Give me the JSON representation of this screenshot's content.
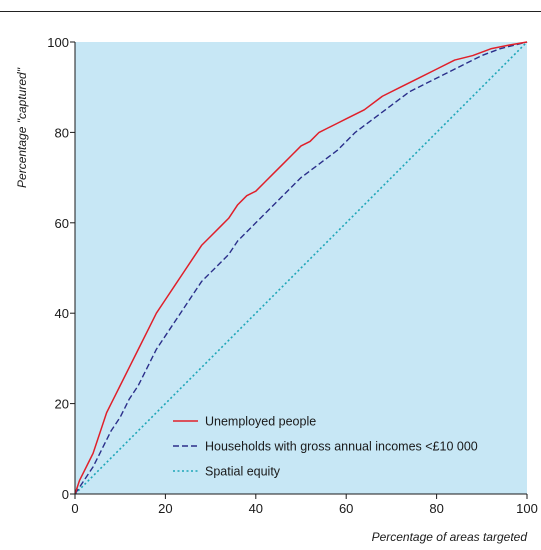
{
  "chart_data": {
    "type": "line",
    "xlabel": "Percentage of areas targeted",
    "ylabel": "Percentage \"captured\"",
    "xlim": [
      0,
      100
    ],
    "ylim": [
      0,
      100
    ],
    "x_ticks": [
      "0",
      "20",
      "40",
      "60",
      "80",
      "100"
    ],
    "y_ticks": [
      "0",
      "20",
      "40",
      "60",
      "80",
      "100"
    ],
    "grid": false,
    "legend_position": "bottom-right",
    "background": "#c7e7f5",
    "series": [
      {
        "name": "Unemployed people",
        "color": "#e0202a",
        "style": "solid",
        "points": [
          [
            0,
            0
          ],
          [
            1,
            3
          ],
          [
            2,
            5
          ],
          [
            3,
            7
          ],
          [
            4,
            9
          ],
          [
            5,
            12
          ],
          [
            6,
            15
          ],
          [
            7,
            18
          ],
          [
            8,
            20
          ],
          [
            9,
            22
          ],
          [
            10,
            24
          ],
          [
            12,
            28
          ],
          [
            14,
            32
          ],
          [
            16,
            36
          ],
          [
            18,
            40
          ],
          [
            20,
            43
          ],
          [
            22,
            46
          ],
          [
            24,
            49
          ],
          [
            26,
            52
          ],
          [
            28,
            55
          ],
          [
            30,
            57
          ],
          [
            32,
            59
          ],
          [
            34,
            61
          ],
          [
            36,
            64
          ],
          [
            38,
            66
          ],
          [
            40,
            67
          ],
          [
            42,
            69
          ],
          [
            44,
            71
          ],
          [
            46,
            73
          ],
          [
            48,
            75
          ],
          [
            50,
            77
          ],
          [
            52,
            78
          ],
          [
            54,
            80
          ],
          [
            56,
            81
          ],
          [
            58,
            82
          ],
          [
            60,
            83
          ],
          [
            64,
            85
          ],
          [
            68,
            88
          ],
          [
            72,
            90
          ],
          [
            76,
            92
          ],
          [
            80,
            94
          ],
          [
            84,
            96
          ],
          [
            88,
            97
          ],
          [
            92,
            98.5
          ],
          [
            96,
            99.3
          ],
          [
            100,
            100
          ]
        ]
      },
      {
        "name": "Households with gross annual incomes <£10 000",
        "color": "#2b2f8a",
        "style": "dashed",
        "points": [
          [
            0,
            0
          ],
          [
            2,
            3
          ],
          [
            4,
            6
          ],
          [
            6,
            10
          ],
          [
            8,
            14
          ],
          [
            10,
            17
          ],
          [
            12,
            21
          ],
          [
            14,
            24
          ],
          [
            16,
            28
          ],
          [
            18,
            32
          ],
          [
            20,
            35
          ],
          [
            22,
            38
          ],
          [
            24,
            41
          ],
          [
            26,
            44
          ],
          [
            28,
            47
          ],
          [
            30,
            49
          ],
          [
            32,
            51
          ],
          [
            34,
            53
          ],
          [
            36,
            56
          ],
          [
            38,
            58
          ],
          [
            40,
            60
          ],
          [
            42,
            62
          ],
          [
            44,
            64
          ],
          [
            46,
            66
          ],
          [
            48,
            68
          ],
          [
            50,
            70
          ],
          [
            54,
            73
          ],
          [
            58,
            76
          ],
          [
            62,
            80
          ],
          [
            66,
            83
          ],
          [
            70,
            86
          ],
          [
            74,
            89
          ],
          [
            78,
            91
          ],
          [
            82,
            93
          ],
          [
            86,
            95
          ],
          [
            90,
            97
          ],
          [
            94,
            98.5
          ],
          [
            100,
            100
          ]
        ]
      },
      {
        "name": "Spatial equity",
        "color": "#1fa6b8",
        "style": "dotted",
        "points": [
          [
            0,
            0
          ],
          [
            100,
            100
          ]
        ]
      }
    ]
  }
}
